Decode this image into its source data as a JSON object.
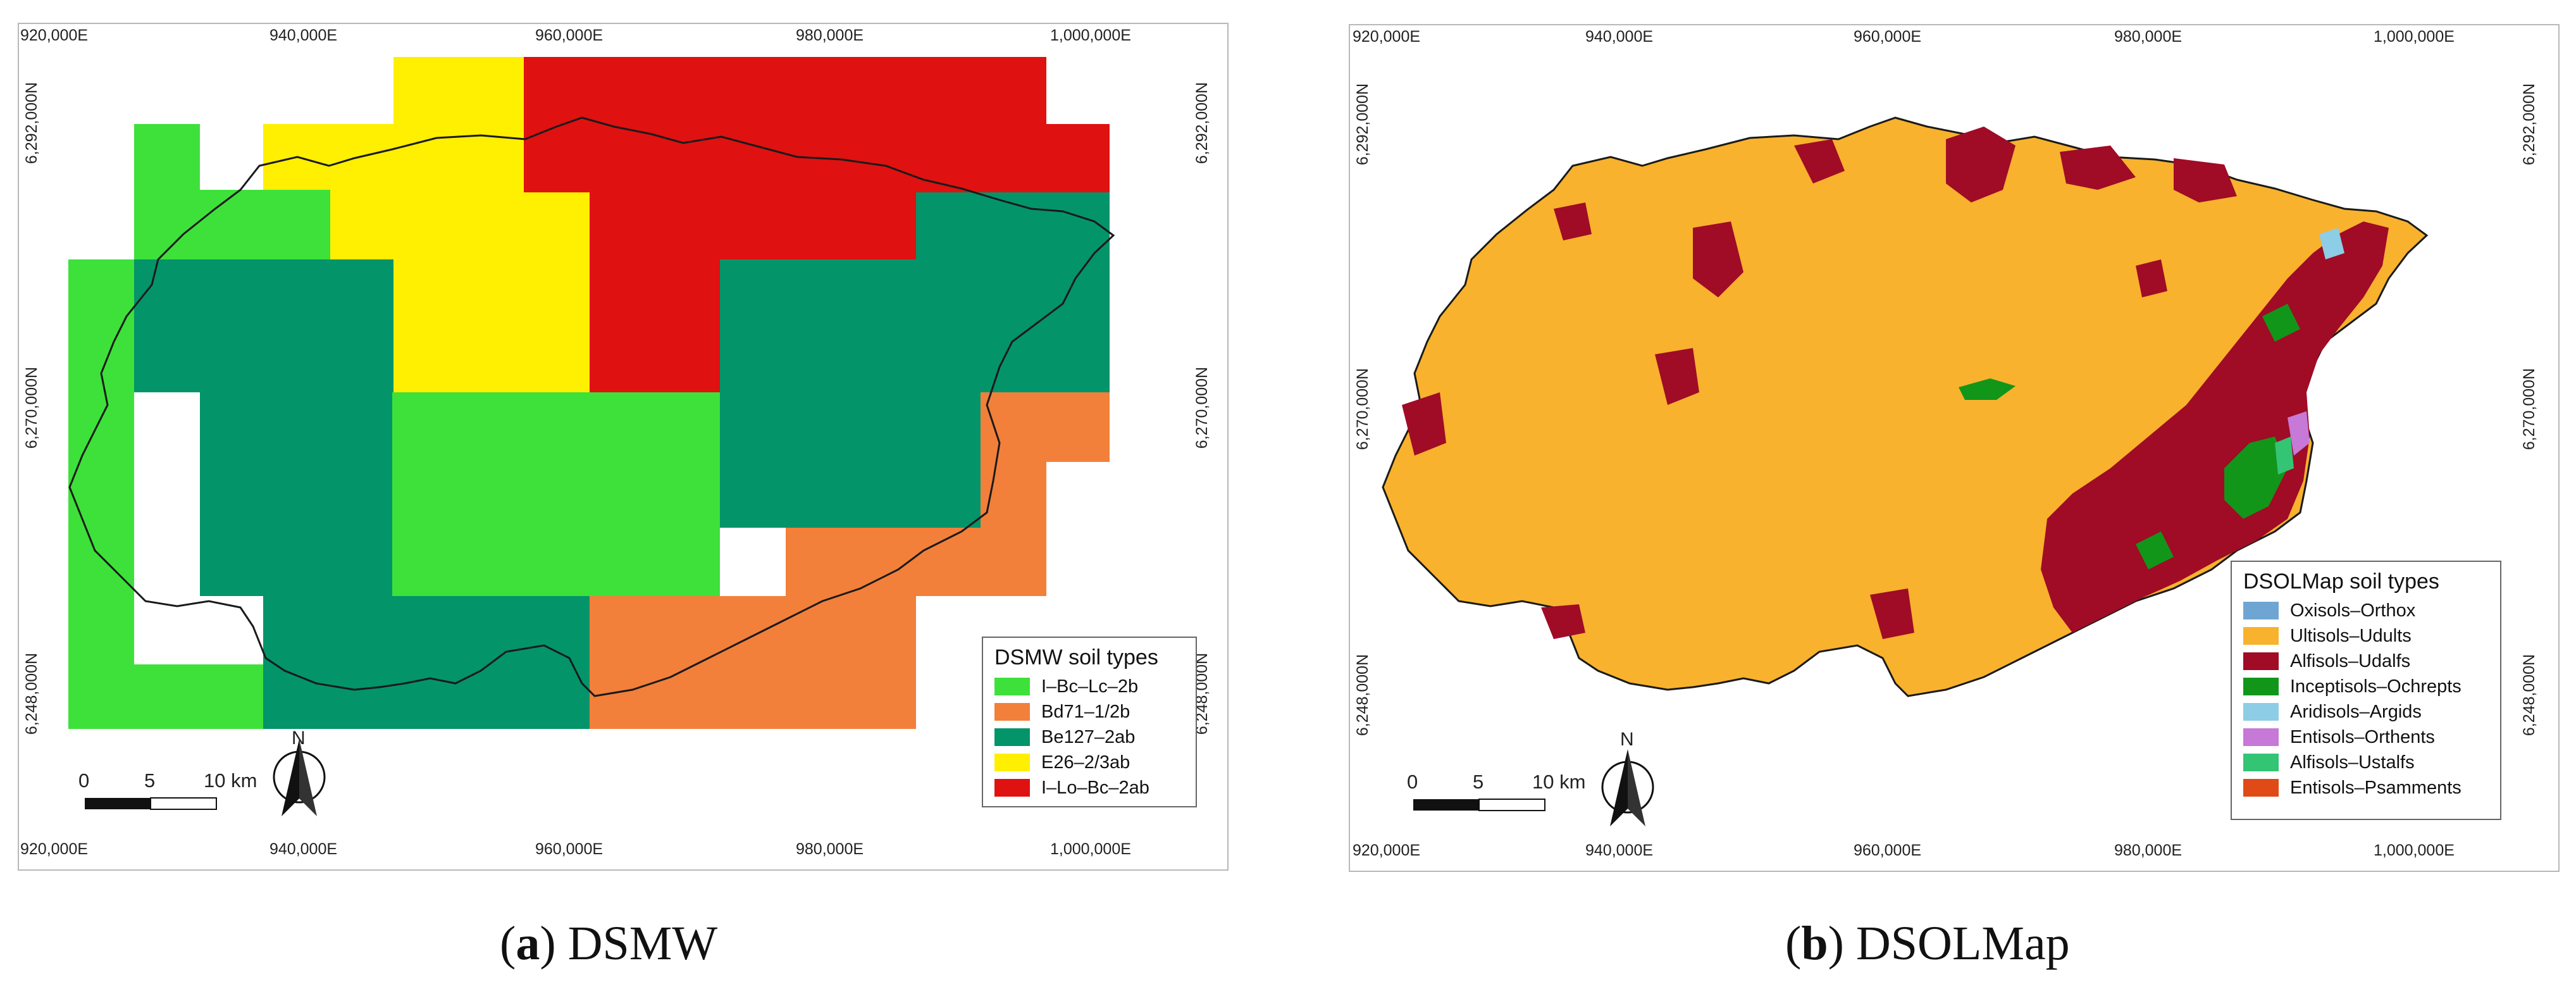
{
  "panels": [
    {
      "caption_letter": "a",
      "caption_text": "DSMW",
      "x_ticks": [
        "920,000E",
        "940,000E",
        "960,000E",
        "980,000E",
        "1,000,000E"
      ],
      "y_ticks": [
        "6,292,000N",
        "6,270,000N",
        "6,248,000N"
      ],
      "north_label": "N",
      "scale_labels": [
        "0",
        "5",
        "10 km"
      ],
      "legend_title": "DSMW soil types",
      "legend_items": [
        {
          "label": "I–Bc–Lc–2b",
          "color": "#3de13a"
        },
        {
          "label": "Bd71–1/2b",
          "color": "#f2803a"
        },
        {
          "label": "Be127–2ab",
          "color": "#03946a"
        },
        {
          "label": "E26–2/3ab",
          "color": "#ffef00"
        },
        {
          "label": "I–Lo–Bc–2ab",
          "color": "#df1111"
        }
      ]
    },
    {
      "caption_letter": "b",
      "caption_text": "DSOLMap",
      "x_ticks": [
        "920,000E",
        "940,000E",
        "960,000E",
        "980,000E",
        "1,000,000E"
      ],
      "y_ticks": [
        "6,292,000N",
        "6,270,000N",
        "6,248,000N"
      ],
      "north_label": "N",
      "scale_labels": [
        "0",
        "5",
        "10 km"
      ],
      "legend_title": "DSOLMap soil types",
      "legend_items": [
        {
          "label": "Oxisols–Orthox",
          "color": "#6fa5d2"
        },
        {
          "label": "Ultisols–Udults",
          "color": "#f8b22d"
        },
        {
          "label": "Alfisols–Udalfs",
          "color": "#a00b26"
        },
        {
          "label": "Inceptisols–Ochrepts",
          "color": "#11961a"
        },
        {
          "label": "Aridisols–Argids",
          "color": "#8dcde6"
        },
        {
          "label": "Entisols–Orthents",
          "color": "#c679d6"
        },
        {
          "label": "Alfisols–Ustalfs",
          "color": "#33c474"
        },
        {
          "label": "Entisols–Psamments",
          "color": "#e04a17"
        }
      ]
    }
  ]
}
